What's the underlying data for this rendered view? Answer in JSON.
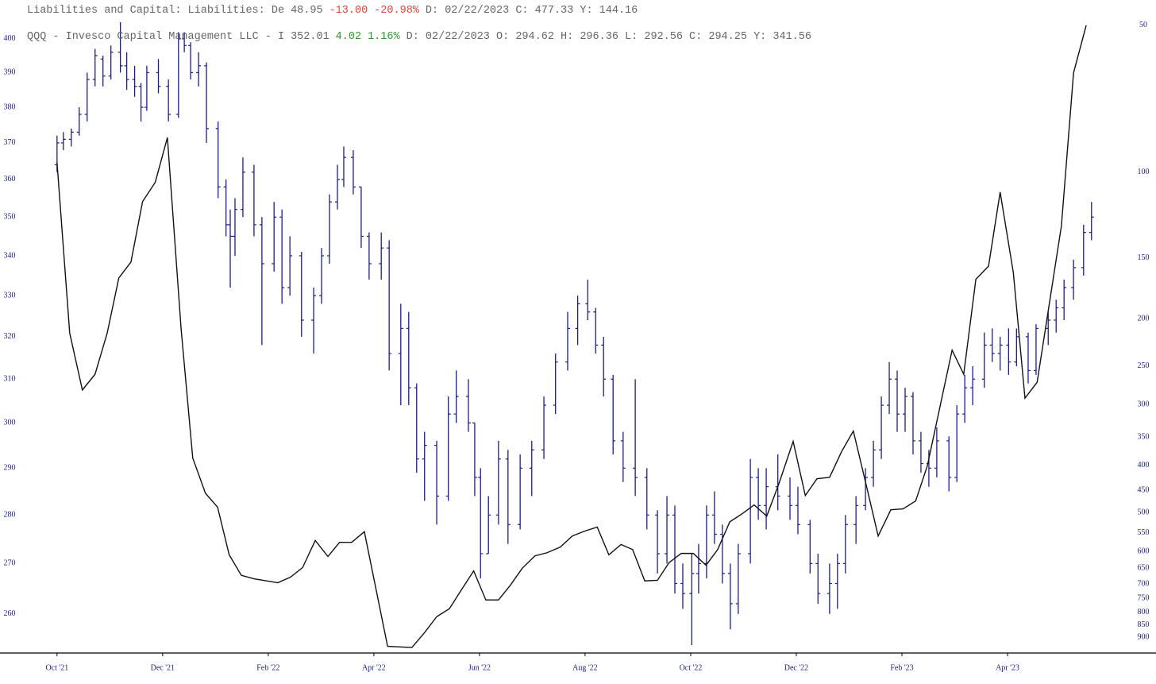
{
  "chart_data": {
    "type": "ohlc_line",
    "headers": [
      {
        "name": "Liabilities and Capital: Liabilities: De",
        "last": "48.95",
        "change": "-13.00",
        "change_pct": "-20.98%",
        "details": "D: 02/22/2023 C: 477.33 Y: 144.16",
        "change_color": "#e0443a"
      },
      {
        "name": "QQQ - Invesco Capital Management LLC - I",
        "last": "352.01",
        "change": "4.02",
        "change_pct": "1.16%",
        "details": "D: 02/22/2023 O: 294.62 H: 296.36 L: 292.56 C: 294.25 Y: 341.56",
        "change_color": "#2e9a2e"
      }
    ],
    "xlim": [
      -1.08,
      20.27
    ],
    "xticks": [
      {
        "value": 0,
        "label": "Oct '21"
      },
      {
        "value": 2,
        "label": "Dec '21"
      },
      {
        "value": 4,
        "label": "Feb '22"
      },
      {
        "value": 6,
        "label": "Apr '22"
      },
      {
        "value": 8,
        "label": "Jun '22"
      },
      {
        "value": 10,
        "label": "Aug '22"
      },
      {
        "value": 12,
        "label": "Oct '22"
      },
      {
        "value": 14,
        "label": "Dec '22"
      },
      {
        "value": 16,
        "label": "Feb '23"
      },
      {
        "value": 18,
        "label": "Apr '23"
      }
    ],
    "yscale": "log",
    "ylim": [
      252.5,
      405
    ],
    "yticks": [
      260,
      270,
      280,
      290,
      300,
      310,
      320,
      330,
      340,
      350,
      360,
      370,
      380,
      390,
      400
    ],
    "y2scale": "log",
    "y2lim": [
      970,
      49.3
    ],
    "y2ticks": [
      50,
      100,
      150,
      200,
      250,
      300,
      350,
      400,
      450,
      500,
      550,
      600,
      650,
      700,
      750,
      800,
      850,
      900
    ],
    "series": [
      {
        "name": "QQQ - Invesco Capital Management LLC - I",
        "type": "ohlc",
        "color": "#1c1c8e",
        "x": [
          0,
          0.12,
          0.27,
          0.42,
          0.57,
          0.72,
          0.87,
          1.02,
          1.2,
          1.32,
          1.47,
          1.59,
          1.7,
          1.92,
          2.11,
          2.3,
          2.41,
          2.53,
          2.68,
          2.83,
          3.05,
          3.2,
          3.28,
          3.37,
          3.52,
          3.73,
          3.88,
          4.11,
          4.26,
          4.41,
          4.63,
          4.86,
          5.01,
          5.16,
          5.31,
          5.43,
          5.61,
          5.76,
          5.91,
          6.14,
          6.29,
          6.51,
          6.66,
          6.81,
          6.96,
          7.19,
          7.41,
          7.56,
          7.79,
          7.91,
          8.02,
          8.17,
          8.36,
          8.54,
          8.77,
          8.99,
          9.22,
          9.44,
          9.67,
          9.86,
          10.05,
          10.2,
          10.35,
          10.53,
          10.72,
          10.95,
          11.17,
          11.37,
          11.55,
          11.7,
          11.85,
          12.02,
          12.15,
          12.3,
          12.45,
          12.6,
          12.75,
          12.9,
          13.13,
          13.28,
          13.43,
          13.65,
          13.88,
          14.03,
          14.26,
          14.41,
          14.63,
          14.78,
          14.93,
          15.13,
          15.31,
          15.46,
          15.61,
          15.76,
          15.91,
          16.06,
          16.21,
          16.36,
          16.51,
          16.66,
          16.89,
          17.04,
          17.19,
          17.34,
          17.56,
          17.71,
          17.86,
          18.02,
          18.17,
          18.39,
          18.54,
          18.77,
          18.92,
          19.07,
          19.25,
          19.44,
          19.59
        ],
        "open": [
          364,
          370,
          371,
          373,
          378,
          388,
          394,
          389,
          396,
          392,
          388,
          386,
          380,
          390,
          386,
          378,
          400,
          398,
          390,
          392,
          374,
          358,
          348,
          345,
          352,
          362,
          348,
          338,
          350,
          332,
          340,
          324,
          330,
          340,
          354,
          360,
          366,
          358,
          345,
          338,
          342,
          316,
          322,
          308,
          292,
          295,
          284,
          302,
          306,
          300,
          288,
          272,
          280,
          292,
          278,
          290,
          294,
          304,
          314,
          322,
          328,
          326,
          318,
          310,
          296,
          290,
          288,
          280,
          272,
          280,
          266,
          264,
          268,
          270,
          280,
          276,
          268,
          262,
          272,
          288,
          282,
          286,
          284,
          282,
          278,
          270,
          264,
          266,
          270,
          278,
          282,
          288,
          294,
          304,
          310,
          302,
          306,
          296,
          291,
          290,
          296,
          288,
          302,
          308,
          310,
          318,
          316,
          318,
          314,
          320,
          312,
          322,
          324,
          327,
          332,
          337,
          346
        ],
        "high": [
          372,
          373,
          374,
          380,
          390,
          397,
          395,
          398,
          405,
          396,
          392,
          387,
          392,
          394,
          388,
          402,
          402,
          399,
          396,
          393,
          376,
          360,
          352,
          355,
          366,
          364,
          350,
          354,
          352,
          345,
          341,
          332,
          342,
          356,
          364,
          369,
          368,
          358,
          346,
          346,
          344,
          328,
          326,
          309,
          298,
          296,
          306,
          312,
          310,
          300,
          290,
          284,
          296,
          294,
          293,
          296,
          306,
          316,
          326,
          330,
          334,
          327,
          320,
          311,
          298,
          310,
          290,
          281,
          284,
          282,
          270,
          272,
          274,
          282,
          285,
          278,
          270,
          274,
          292,
          290,
          290,
          293,
          288,
          286,
          279,
          272,
          270,
          272,
          280,
          284,
          290,
          296,
          306,
          314,
          312,
          308,
          307,
          298,
          294,
          299,
          297,
          304,
          311,
          313,
          321,
          322,
          320,
          322,
          322,
          321,
          323,
          326,
          329,
          334,
          339,
          348,
          354
        ],
        "low": [
          362,
          368,
          369,
          372,
          376,
          386,
          386,
          388,
          390,
          385,
          383,
          376,
          379,
          384,
          376,
          377,
          396,
          388,
          386,
          370,
          355,
          345,
          332,
          340,
          350,
          345,
          318,
          336,
          328,
          330,
          320,
          316,
          328,
          338,
          352,
          358,
          356,
          342,
          334,
          334,
          312,
          304,
          304,
          289,
          283,
          278,
          283,
          300,
          298,
          284,
          267,
          272,
          278,
          274,
          277,
          284,
          292,
          302,
          312,
          318,
          324,
          316,
          306,
          293,
          287,
          284,
          277,
          268,
          270,
          264,
          261,
          254,
          264,
          267,
          274,
          266,
          257,
          260,
          270,
          279,
          277,
          281,
          279,
          276,
          268,
          262,
          260,
          261,
          268,
          274,
          281,
          286,
          292,
          302,
          298,
          298,
          293,
          289,
          286,
          288,
          285,
          287,
          300,
          304,
          308,
          314,
          312,
          311,
          313,
          309,
          311,
          318,
          321,
          324,
          329,
          335,
          344
        ],
        "close": [
          370,
          371,
          373,
          378,
          388,
          395,
          389,
          396,
          392,
          388,
          386,
          380,
          390,
          386,
          378,
          400,
          398,
          390,
          392,
          374,
          358,
          348,
          345,
          352,
          362,
          348,
          338,
          350,
          332,
          340,
          324,
          330,
          340,
          354,
          360,
          366,
          358,
          345,
          338,
          342,
          316,
          322,
          308,
          292,
          295,
          284,
          302,
          306,
          300,
          288,
          272,
          280,
          292,
          278,
          290,
          294,
          304,
          314,
          322,
          328,
          326,
          318,
          310,
          296,
          290,
          288,
          280,
          272,
          280,
          266,
          264,
          268,
          270,
          280,
          276,
          268,
          262,
          272,
          288,
          282,
          286,
          284,
          282,
          278,
          270,
          264,
          266,
          270,
          278,
          282,
          288,
          294,
          304,
          310,
          302,
          306,
          296,
          291,
          290,
          296,
          288,
          302,
          308,
          310,
          318,
          316,
          318,
          314,
          320,
          312,
          322,
          324,
          327,
          332,
          337,
          346,
          350
        ]
      },
      {
        "name": "Liabilities and Capital: Liabilities: De",
        "type": "line",
        "axis": "y2",
        "color": "#111111",
        "x": [
          0,
          0.24,
          0.48,
          0.72,
          0.95,
          1.17,
          1.4,
          1.62,
          1.86,
          2.09,
          2.35,
          2.57,
          2.81,
          3.04,
          3.26,
          3.49,
          3.73,
          4.18,
          4.42,
          4.65,
          4.89,
          5.13,
          5.35,
          5.58,
          5.82,
          6.26,
          6.72,
          6.96,
          7.19,
          7.43,
          7.65,
          7.89,
          8.12,
          8.36,
          8.59,
          8.81,
          9.05,
          9.28,
          9.53,
          9.76,
          10,
          10.23,
          10.45,
          10.68,
          10.9,
          11.13,
          11.37,
          11.59,
          11.82,
          12.05,
          12.29,
          12.51,
          12.74,
          12.98,
          13.2,
          13.44,
          13.67,
          13.94,
          14.17,
          14.39,
          14.63,
          14.86,
          15.08,
          15.32,
          15.55,
          15.79,
          16.02,
          16.26,
          16.48,
          16.95,
          17.17,
          17.4,
          17.64,
          17.86,
          18.11,
          18.33,
          18.56,
          19.02,
          19.25,
          19.49
        ],
        "values": [
          95.6,
          214,
          280,
          260,
          214,
          165,
          153,
          115,
          105,
          85,
          210,
          386,
          456,
          487,
          610,
          672,
          683,
          696,
          678,
          648,
          570,
          615,
          575,
          575,
          547,
          940,
          945,
          881,
          817,
          787,
          722,
          658,
          755,
          755,
          703,
          650,
          613,
          604,
          588,
          558,
          545,
          535,
          610,
          581,
          595,
          690,
          688,
          633,
          606,
          606,
          641,
          595,
          522,
          502,
          482,
          508,
          436,
          357,
          461,
          426,
          423,
          374,
          340,
          437,
          558,
          493,
          491,
          473,
          401,
          232,
          260,
          166,
          156,
          110,
          161,
          291,
          270,
          129,
          62.6,
          50
        ]
      }
    ]
  }
}
